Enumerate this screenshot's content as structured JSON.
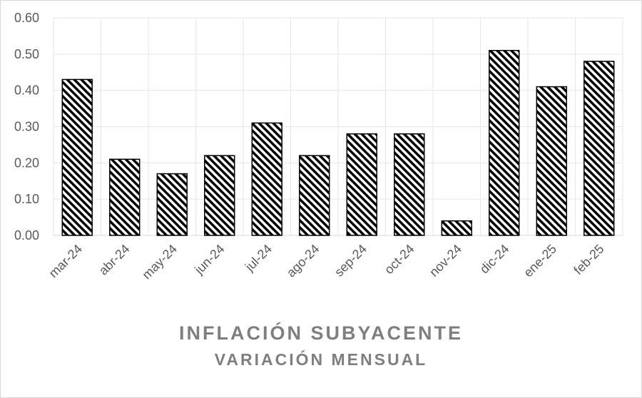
{
  "chart_data": {
    "type": "bar",
    "title": "INFLACIÓN SUBYACENTE",
    "subtitle": "VARIACIÓN MENSUAL",
    "categories": [
      "mar-24",
      "abr-24",
      "may-24",
      "jun-24",
      "jul-24",
      "ago-24",
      "sep-24",
      "oct-24",
      "nov-24",
      "dic-24",
      "ene-25",
      "feb-25"
    ],
    "values": [
      0.43,
      0.21,
      0.17,
      0.22,
      0.31,
      0.22,
      0.28,
      0.28,
      0.04,
      0.51,
      0.41,
      0.48
    ],
    "ylim": [
      0,
      0.6
    ],
    "yticks": [
      "0.00",
      "0.10",
      "0.20",
      "0.30",
      "0.40",
      "0.50",
      "0.60"
    ],
    "grid": true,
    "bar_fill": "diagonal-hatch",
    "colors": {
      "bar_stroke": "#000000",
      "hatch": "#000000",
      "grid": "#e6e6e6",
      "tick_text": "#595959",
      "title_text": "#7f7f7f"
    }
  }
}
